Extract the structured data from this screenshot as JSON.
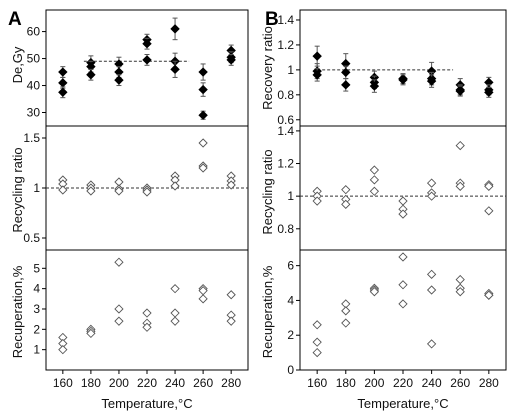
{
  "figure": {
    "panel_labels": [
      "A",
      "B"
    ],
    "x_axis_label": "Temperature,°C",
    "x_ticks": [
      160,
      180,
      200,
      220,
      240,
      260,
      280
    ]
  },
  "chart_data": [
    {
      "id": "A-top",
      "type": "scatter",
      "panel": "A",
      "ylabel": "De,Gy",
      "xlim": [
        148,
        292
      ],
      "ylim": [
        25,
        68
      ],
      "yticks": [
        30,
        40,
        50,
        60
      ],
      "marker": "filled-diamond",
      "dividers": [
        "top"
      ],
      "ref_line": {
        "y": 49,
        "x_from": 175,
        "x_to": 250
      },
      "points": [
        {
          "x": 160,
          "y": 45,
          "err": 2
        },
        {
          "x": 160,
          "y": 41,
          "err": 2
        },
        {
          "x": 160,
          "y": 37.5,
          "err": 2
        },
        {
          "x": 180,
          "y": 48.5,
          "err": 2.5
        },
        {
          "x": 180,
          "y": 47,
          "err": 2
        },
        {
          "x": 180,
          "y": 44,
          "err": 2
        },
        {
          "x": 200,
          "y": 48,
          "err": 2.5
        },
        {
          "x": 200,
          "y": 45,
          "err": 2
        },
        {
          "x": 200,
          "y": 42,
          "err": 2
        },
        {
          "x": 220,
          "y": 57,
          "err": 2
        },
        {
          "x": 220,
          "y": 55.5,
          "err": 2
        },
        {
          "x": 220,
          "y": 49.5,
          "err": 2
        },
        {
          "x": 240,
          "y": 61,
          "err": 4
        },
        {
          "x": 240,
          "y": 49,
          "err": 3
        },
        {
          "x": 240,
          "y": 46,
          "err": 3
        },
        {
          "x": 260,
          "y": 45,
          "err": 3
        },
        {
          "x": 260,
          "y": 38.5,
          "err": 2.5
        },
        {
          "x": 260,
          "y": 29,
          "err": 1.5
        },
        {
          "x": 280,
          "y": 53,
          "err": 2
        },
        {
          "x": 280,
          "y": 50.5,
          "err": 2
        },
        {
          "x": 280,
          "y": 49.5,
          "err": 2
        }
      ]
    },
    {
      "id": "A-middle",
      "type": "scatter",
      "panel": "A",
      "ylabel": "Recycling ratio",
      "xlim": [
        148,
        292
      ],
      "ylim": [
        0.38,
        1.62
      ],
      "yticks": [
        0.5,
        1.0,
        1.5
      ],
      "marker": "open-diamond",
      "dividers": [
        "top"
      ],
      "ref_line": {
        "y": 1.0,
        "x_from": 148,
        "x_to": 292
      },
      "points": [
        {
          "x": 160,
          "y": 1.08
        },
        {
          "x": 160,
          "y": 1.04
        },
        {
          "x": 160,
          "y": 0.98
        },
        {
          "x": 180,
          "y": 1.03
        },
        {
          "x": 180,
          "y": 1.0
        },
        {
          "x": 180,
          "y": 0.97
        },
        {
          "x": 200,
          "y": 1.06
        },
        {
          "x": 200,
          "y": 0.99
        },
        {
          "x": 200,
          "y": 0.97
        },
        {
          "x": 220,
          "y": 1.0
        },
        {
          "x": 220,
          "y": 0.98
        },
        {
          "x": 220,
          "y": 0.96
        },
        {
          "x": 240,
          "y": 1.12
        },
        {
          "x": 240,
          "y": 1.08
        },
        {
          "x": 240,
          "y": 1.02
        },
        {
          "x": 260,
          "y": 1.45
        },
        {
          "x": 260,
          "y": 1.22
        },
        {
          "x": 260,
          "y": 1.2
        },
        {
          "x": 280,
          "y": 1.12
        },
        {
          "x": 280,
          "y": 1.07
        },
        {
          "x": 280,
          "y": 1.03
        }
      ]
    },
    {
      "id": "A-bottom",
      "type": "scatter",
      "panel": "A",
      "ylabel": "Recuperation,%",
      "xlim": [
        148,
        292
      ],
      "ylim": [
        0,
        5.9
      ],
      "yticks": [
        1,
        2,
        3,
        4,
        5
      ],
      "marker": "open-diamond",
      "dividers": [
        "top",
        "bottom"
      ],
      "show_x_ticks": true,
      "points": [
        {
          "x": 160,
          "y": 1.6
        },
        {
          "x": 160,
          "y": 1.3
        },
        {
          "x": 160,
          "y": 1.0
        },
        {
          "x": 180,
          "y": 2.0
        },
        {
          "x": 180,
          "y": 1.9
        },
        {
          "x": 180,
          "y": 1.8
        },
        {
          "x": 200,
          "y": 5.3
        },
        {
          "x": 200,
          "y": 3.0
        },
        {
          "x": 200,
          "y": 2.4
        },
        {
          "x": 220,
          "y": 2.8
        },
        {
          "x": 220,
          "y": 2.3
        },
        {
          "x": 220,
          "y": 2.1
        },
        {
          "x": 240,
          "y": 4.0
        },
        {
          "x": 240,
          "y": 2.8
        },
        {
          "x": 240,
          "y": 2.4
        },
        {
          "x": 260,
          "y": 4.0
        },
        {
          "x": 260,
          "y": 3.9
        },
        {
          "x": 260,
          "y": 3.5
        },
        {
          "x": 280,
          "y": 3.7
        },
        {
          "x": 280,
          "y": 2.7
        },
        {
          "x": 280,
          "y": 2.4
        }
      ]
    },
    {
      "id": "B-top",
      "type": "scatter",
      "panel": "B",
      "ylabel": "Recovery ratio",
      "xlim": [
        148,
        292
      ],
      "ylim": [
        0.55,
        1.48
      ],
      "yticks": [
        0.6,
        0.8,
        1.0,
        1.2,
        1.4
      ],
      "marker": "filled-diamond",
      "dividers": [
        "top"
      ],
      "ref_line": {
        "y": 1.0,
        "x_from": 160,
        "x_to": 255
      },
      "points": [
        {
          "x": 160,
          "y": 1.11,
          "err": 0.08
        },
        {
          "x": 160,
          "y": 0.99,
          "err": 0.06
        },
        {
          "x": 160,
          "y": 0.96,
          "err": 0.05
        },
        {
          "x": 180,
          "y": 1.05,
          "err": 0.08
        },
        {
          "x": 180,
          "y": 0.98,
          "err": 0.05
        },
        {
          "x": 180,
          "y": 0.88,
          "err": 0.05
        },
        {
          "x": 200,
          "y": 0.94,
          "err": 0.05
        },
        {
          "x": 200,
          "y": 0.9,
          "err": 0.05
        },
        {
          "x": 200,
          "y": 0.87,
          "err": 0.05
        },
        {
          "x": 220,
          "y": 0.93,
          "err": 0.04
        },
        {
          "x": 220,
          "y": 0.92,
          "err": 0.04
        },
        {
          "x": 240,
          "y": 0.99,
          "err": 0.07
        },
        {
          "x": 240,
          "y": 0.93,
          "err": 0.05
        },
        {
          "x": 240,
          "y": 0.91,
          "err": 0.05
        },
        {
          "x": 260,
          "y": 0.88,
          "err": 0.05
        },
        {
          "x": 260,
          "y": 0.84,
          "err": 0.04
        },
        {
          "x": 260,
          "y": 0.83,
          "err": 0.04
        },
        {
          "x": 280,
          "y": 0.9,
          "err": 0.04
        },
        {
          "x": 280,
          "y": 0.84,
          "err": 0.04
        },
        {
          "x": 280,
          "y": 0.82,
          "err": 0.04
        }
      ]
    },
    {
      "id": "B-middle",
      "type": "scatter",
      "panel": "B",
      "ylabel": "Recycling ratio",
      "xlim": [
        148,
        292
      ],
      "ylim": [
        0.67,
        1.43
      ],
      "yticks": [
        0.8,
        1.0,
        1.2,
        1.4
      ],
      "marker": "open-diamond",
      "dividers": [
        "top"
      ],
      "ref_line": {
        "y": 1.0,
        "x_from": 148,
        "x_to": 292
      },
      "points": [
        {
          "x": 160,
          "y": 1.03
        },
        {
          "x": 160,
          "y": 1.0
        },
        {
          "x": 160,
          "y": 0.97
        },
        {
          "x": 180,
          "y": 1.04
        },
        {
          "x": 180,
          "y": 0.98
        },
        {
          "x": 180,
          "y": 0.95
        },
        {
          "x": 200,
          "y": 1.16
        },
        {
          "x": 200,
          "y": 1.1
        },
        {
          "x": 200,
          "y": 1.03
        },
        {
          "x": 220,
          "y": 0.97
        },
        {
          "x": 220,
          "y": 0.92
        },
        {
          "x": 220,
          "y": 0.89
        },
        {
          "x": 240,
          "y": 1.08
        },
        {
          "x": 240,
          "y": 1.02
        },
        {
          "x": 240,
          "y": 1.0
        },
        {
          "x": 260,
          "y": 1.31
        },
        {
          "x": 260,
          "y": 1.08
        },
        {
          "x": 260,
          "y": 1.06
        },
        {
          "x": 280,
          "y": 1.07
        },
        {
          "x": 280,
          "y": 1.06
        },
        {
          "x": 280,
          "y": 0.91
        }
      ]
    },
    {
      "id": "B-bottom",
      "type": "scatter",
      "panel": "B",
      "ylabel": "Recuperation,%",
      "xlim": [
        148,
        292
      ],
      "ylim": [
        0,
        6.9
      ],
      "yticks": [
        0,
        2,
        4,
        6
      ],
      "marker": "open-diamond",
      "dividers": [
        "top",
        "bottom"
      ],
      "show_x_ticks": true,
      "points": [
        {
          "x": 160,
          "y": 2.6
        },
        {
          "x": 160,
          "y": 1.6
        },
        {
          "x": 160,
          "y": 1.0
        },
        {
          "x": 180,
          "y": 3.8
        },
        {
          "x": 180,
          "y": 3.4
        },
        {
          "x": 180,
          "y": 2.7
        },
        {
          "x": 200,
          "y": 4.7
        },
        {
          "x": 200,
          "y": 4.6
        },
        {
          "x": 200,
          "y": 4.5
        },
        {
          "x": 220,
          "y": 6.5
        },
        {
          "x": 220,
          "y": 4.9
        },
        {
          "x": 220,
          "y": 3.8
        },
        {
          "x": 240,
          "y": 5.5
        },
        {
          "x": 240,
          "y": 4.6
        },
        {
          "x": 240,
          "y": 1.5
        },
        {
          "x": 260,
          "y": 5.2
        },
        {
          "x": 260,
          "y": 4.7
        },
        {
          "x": 260,
          "y": 4.5
        },
        {
          "x": 280,
          "y": 4.4
        },
        {
          "x": 280,
          "y": 4.3
        },
        {
          "x": 280,
          "y": 4.3
        }
      ]
    }
  ]
}
